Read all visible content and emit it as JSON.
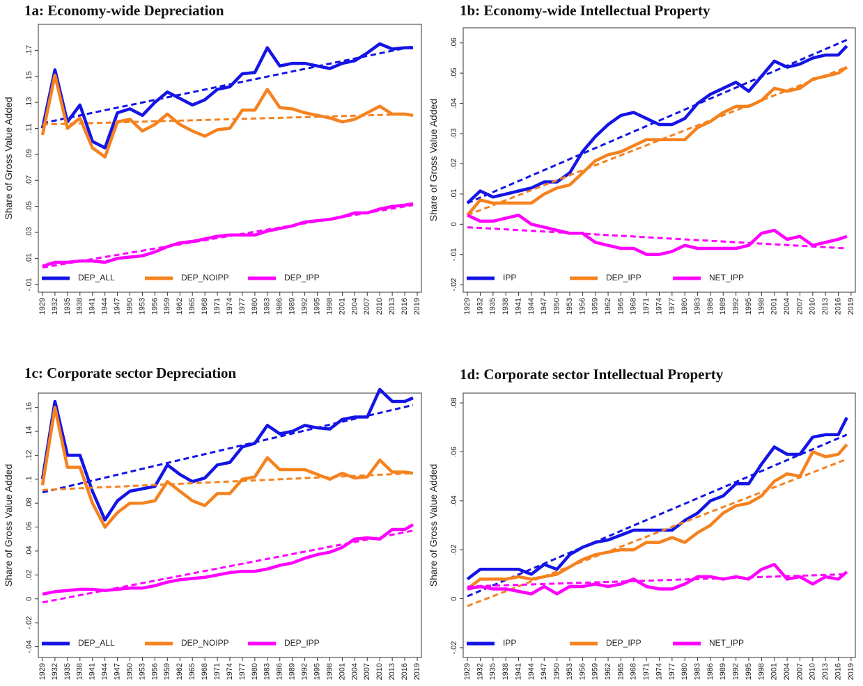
{
  "chart_data": [
    {
      "type": "line",
      "title": "1a: Economy-wide Depreciation",
      "ylabel": "Share of Gross Value Added",
      "x": [
        1929,
        1932,
        1935,
        1938,
        1941,
        1944,
        1947,
        1950,
        1953,
        1956,
        1959,
        1962,
        1965,
        1968,
        1971,
        1974,
        1977,
        1980,
        1983,
        1986,
        1989,
        1992,
        1995,
        1998,
        2001,
        2004,
        2007,
        2010,
        2013,
        2016,
        2018
      ],
      "xlim": [
        1928,
        2020
      ],
      "xticks": [
        1929,
        1932,
        1935,
        1938,
        1941,
        1944,
        1947,
        1950,
        1953,
        1956,
        1959,
        1962,
        1965,
        1968,
        1971,
        1974,
        1977,
        1980,
        1983,
        1986,
        1989,
        1992,
        1995,
        1998,
        2001,
        2004,
        2007,
        2010,
        2013,
        2016,
        2019
      ],
      "ylim": [
        -0.016,
        0.19
      ],
      "yticks": [
        {
          "value": -0.01,
          "label": "-.01"
        },
        {
          "value": 0.01,
          "label": ".01"
        },
        {
          "value": 0.03,
          "label": ".03"
        },
        {
          "value": 0.05,
          "label": ".05"
        },
        {
          "value": 0.07,
          "label": ".07"
        },
        {
          "value": 0.09,
          "label": ".09"
        },
        {
          "value": 0.11,
          "label": ".11"
        },
        {
          "value": 0.13,
          "label": ".13"
        },
        {
          "value": 0.15,
          "label": ".15"
        },
        {
          "value": 0.17,
          "label": ".17"
        }
      ],
      "series": [
        {
          "name": "DEP_ALL",
          "color": "#1414e6",
          "trend": [
            0.114,
            0.173
          ],
          "values": [
            0.11,
            0.155,
            0.115,
            0.128,
            0.1,
            0.095,
            0.122,
            0.125,
            0.12,
            0.13,
            0.138,
            0.133,
            0.128,
            0.132,
            0.14,
            0.142,
            0.152,
            0.153,
            0.172,
            0.158,
            0.16,
            0.16,
            0.158,
            0.156,
            0.16,
            0.162,
            0.168,
            0.175,
            0.171,
            0.172,
            0.172
          ]
        },
        {
          "name": "DEP_NOIPP",
          "color": "#f5821f",
          "trend": [
            0.113,
            0.121
          ],
          "values": [
            0.105,
            0.151,
            0.11,
            0.118,
            0.095,
            0.088,
            0.115,
            0.117,
            0.108,
            0.113,
            0.121,
            0.113,
            0.108,
            0.104,
            0.109,
            0.11,
            0.124,
            0.124,
            0.14,
            0.126,
            0.125,
            0.122,
            0.12,
            0.118,
            0.115,
            0.117,
            0.122,
            0.127,
            0.121,
            0.121,
            0.12
          ]
        },
        {
          "name": "DEP_IPP",
          "color": "#ff00ff",
          "trend": [
            0.003,
            0.051
          ],
          "values": [
            0.004,
            0.007,
            0.007,
            0.008,
            0.008,
            0.007,
            0.01,
            0.011,
            0.012,
            0.015,
            0.019,
            0.022,
            0.023,
            0.025,
            0.027,
            0.028,
            0.028,
            0.028,
            0.031,
            0.033,
            0.035,
            0.038,
            0.039,
            0.04,
            0.042,
            0.045,
            0.045,
            0.048,
            0.05,
            0.051,
            0.052
          ]
        }
      ]
    },
    {
      "type": "line",
      "title": "1b: Economy-wide Intellectual Property",
      "ylabel": "Share of Gross Value Added",
      "x": [
        1929,
        1932,
        1935,
        1938,
        1941,
        1944,
        1947,
        1950,
        1953,
        1956,
        1959,
        1962,
        1965,
        1968,
        1971,
        1974,
        1977,
        1980,
        1983,
        1986,
        1989,
        1992,
        1995,
        1998,
        2001,
        2004,
        2007,
        2010,
        2013,
        2016,
        2018
      ],
      "xlim": [
        1928,
        2020
      ],
      "xticks": [
        1929,
        1932,
        1935,
        1938,
        1941,
        1944,
        1947,
        1950,
        1953,
        1956,
        1959,
        1962,
        1965,
        1968,
        1971,
        1974,
        1977,
        1980,
        1983,
        1986,
        1989,
        1992,
        1995,
        1998,
        2001,
        2004,
        2007,
        2010,
        2013,
        2016,
        2019
      ],
      "ylim": [
        -0.0225,
        0.065
      ],
      "yticks": [
        {
          "value": -0.02,
          "label": "-.02"
        },
        {
          "value": -0.01,
          "label": "-.01"
        },
        0,
        {
          "value": 0.01,
          "label": ".01"
        },
        {
          "value": 0.02,
          "label": ".02"
        },
        {
          "value": 0.03,
          "label": ".03"
        },
        {
          "value": 0.04,
          "label": ".04"
        },
        {
          "value": 0.05,
          "label": ".05"
        },
        {
          "value": 0.06,
          "label": ".06"
        }
      ],
      "series": [
        {
          "name": "IPP",
          "color": "#1414e6",
          "trend": [
            0.007,
            0.061
          ],
          "values": [
            0.007,
            0.011,
            0.009,
            0.01,
            0.011,
            0.012,
            0.014,
            0.014,
            0.017,
            0.024,
            0.029,
            0.033,
            0.036,
            0.037,
            0.035,
            0.033,
            0.033,
            0.035,
            0.04,
            0.043,
            0.045,
            0.047,
            0.044,
            0.049,
            0.054,
            0.052,
            0.053,
            0.055,
            0.056,
            0.056,
            0.059
          ]
        },
        {
          "name": "DEP_IPP",
          "color": "#f5821f",
          "trend": [
            0.003,
            0.052
          ],
          "values": [
            0.003,
            0.008,
            0.007,
            0.007,
            0.007,
            0.007,
            0.01,
            0.012,
            0.013,
            0.017,
            0.021,
            0.023,
            0.024,
            0.026,
            0.028,
            0.028,
            0.028,
            0.028,
            0.032,
            0.034,
            0.037,
            0.039,
            0.039,
            0.041,
            0.045,
            0.044,
            0.045,
            0.048,
            0.049,
            0.05,
            0.052
          ]
        },
        {
          "name": "NET_IPP",
          "color": "#ff00ff",
          "trend": [
            -0.001,
            -0.008
          ],
          "values": [
            0.003,
            0.001,
            0.001,
            0.002,
            0.003,
            0.0,
            -0.001,
            -0.002,
            -0.003,
            -0.003,
            -0.006,
            -0.007,
            -0.008,
            -0.008,
            -0.01,
            -0.01,
            -0.009,
            -0.007,
            -0.008,
            -0.008,
            -0.008,
            -0.008,
            -0.007,
            -0.003,
            -0.002,
            -0.005,
            -0.004,
            -0.007,
            -0.006,
            -0.005,
            -0.004
          ]
        }
      ]
    },
    {
      "type": "line",
      "title": "1c: Corporate sector Depreciation",
      "ylabel": "Share of Gross Value Added",
      "x": [
        1929,
        1932,
        1935,
        1938,
        1941,
        1944,
        1947,
        1950,
        1953,
        1956,
        1959,
        1962,
        1965,
        1968,
        1971,
        1974,
        1977,
        1980,
        1983,
        1986,
        1989,
        1992,
        1995,
        1998,
        2001,
        2004,
        2007,
        2010,
        2013,
        2016,
        2018
      ],
      "xlim": [
        1928,
        2020
      ],
      "xticks": [
        1929,
        1932,
        1935,
        1938,
        1941,
        1944,
        1947,
        1950,
        1953,
        1956,
        1959,
        1962,
        1965,
        1968,
        1971,
        1974,
        1977,
        1980,
        1983,
        1986,
        1989,
        1992,
        1995,
        1998,
        2001,
        2004,
        2007,
        2010,
        2013,
        2016,
        2019
      ],
      "ylim": [
        -0.049,
        0.172
      ],
      "yticks": [
        {
          "value": -0.04,
          "label": "-.04"
        },
        {
          "value": -0.02,
          "label": "-.02"
        },
        0,
        {
          "value": 0.02,
          "label": ".02"
        },
        {
          "value": 0.04,
          "label": ".04"
        },
        {
          "value": 0.06,
          "label": ".06"
        },
        {
          "value": 0.08,
          "label": ".08"
        },
        {
          "value": 0.1,
          "label": ".1"
        },
        {
          "value": 0.12,
          "label": ".12"
        },
        {
          "value": 0.14,
          "label": ".14"
        },
        {
          "value": 0.16,
          "label": ".16"
        }
      ],
      "series": [
        {
          "name": "DEP_ALL",
          "color": "#1414e6",
          "trend": [
            0.089,
            0.162
          ],
          "values": [
            0.1,
            0.165,
            0.12,
            0.12,
            0.09,
            0.066,
            0.082,
            0.09,
            0.092,
            0.094,
            0.112,
            0.104,
            0.098,
            0.101,
            0.112,
            0.114,
            0.127,
            0.13,
            0.145,
            0.138,
            0.14,
            0.145,
            0.143,
            0.142,
            0.15,
            0.152,
            0.152,
            0.175,
            0.165,
            0.165,
            0.168
          ]
        },
        {
          "name": "DEP_NOIPP",
          "color": "#f5821f",
          "trend": [
            0.091,
            0.105
          ],
          "values": [
            0.095,
            0.16,
            0.11,
            0.11,
            0.08,
            0.06,
            0.072,
            0.08,
            0.08,
            0.082,
            0.098,
            0.09,
            0.082,
            0.078,
            0.088,
            0.088,
            0.1,
            0.102,
            0.118,
            0.108,
            0.108,
            0.108,
            0.104,
            0.1,
            0.105,
            0.101,
            0.102,
            0.116,
            0.106,
            0.106,
            0.105
          ]
        },
        {
          "name": "DEP_IPP",
          "color": "#ff00ff",
          "trend": [
            -0.003,
            0.057
          ],
          "values": [
            0.004,
            0.006,
            0.007,
            0.008,
            0.008,
            0.007,
            0.008,
            0.009,
            0.009,
            0.011,
            0.014,
            0.016,
            0.017,
            0.018,
            0.02,
            0.022,
            0.023,
            0.023,
            0.025,
            0.028,
            0.03,
            0.034,
            0.037,
            0.039,
            0.043,
            0.05,
            0.051,
            0.05,
            0.058,
            0.058,
            0.062
          ]
        }
      ]
    },
    {
      "type": "line",
      "title": "1d: Corporate sector Intellectual Property",
      "ylabel": "Share of Gross Value Added",
      "x": [
        1929,
        1932,
        1935,
        1938,
        1941,
        1944,
        1947,
        1950,
        1953,
        1956,
        1959,
        1962,
        1965,
        1968,
        1971,
        1974,
        1977,
        1980,
        1983,
        1986,
        1989,
        1992,
        1995,
        1998,
        2001,
        2004,
        2007,
        2010,
        2013,
        2016,
        2018
      ],
      "xlim": [
        1928,
        2020
      ],
      "xticks": [
        1929,
        1932,
        1935,
        1938,
        1941,
        1944,
        1947,
        1950,
        1953,
        1956,
        1959,
        1962,
        1965,
        1968,
        1971,
        1974,
        1977,
        1980,
        1983,
        1986,
        1989,
        1992,
        1995,
        1998,
        2001,
        2004,
        2007,
        2010,
        2013,
        2016,
        2019
      ],
      "ylim": [
        -0.024,
        0.084
      ],
      "yticks": [
        {
          "value": -0.02,
          "label": "-.02"
        },
        0,
        {
          "value": 0.02,
          "label": ".02"
        },
        {
          "value": 0.04,
          "label": ".04"
        },
        {
          "value": 0.06,
          "label": ".06"
        },
        {
          "value": 0.08,
          "label": ".08"
        }
      ],
      "series": [
        {
          "name": "IPP",
          "color": "#1414e6",
          "trend": [
            0.001,
            0.067
          ],
          "values": [
            0.008,
            0.012,
            0.012,
            0.012,
            0.012,
            0.01,
            0.014,
            0.012,
            0.018,
            0.021,
            0.023,
            0.024,
            0.026,
            0.028,
            0.028,
            0.028,
            0.028,
            0.032,
            0.035,
            0.04,
            0.042,
            0.047,
            0.047,
            0.055,
            0.062,
            0.059,
            0.059,
            0.066,
            0.067,
            0.067,
            0.074
          ]
        },
        {
          "name": "DEP_IPP",
          "color": "#f5821f",
          "trend": [
            -0.003,
            0.057
          ],
          "values": [
            0.004,
            0.008,
            0.008,
            0.008,
            0.009,
            0.008,
            0.009,
            0.01,
            0.013,
            0.016,
            0.018,
            0.019,
            0.02,
            0.02,
            0.023,
            0.023,
            0.025,
            0.023,
            0.027,
            0.03,
            0.035,
            0.038,
            0.039,
            0.042,
            0.048,
            0.051,
            0.05,
            0.06,
            0.058,
            0.059,
            0.063
          ]
        },
        {
          "name": "NET_IPP",
          "color": "#ff00ff",
          "trend": [
            0.005,
            0.01
          ],
          "values": [
            0.004,
            0.005,
            0.004,
            0.004,
            0.003,
            0.002,
            0.005,
            0.002,
            0.005,
            0.005,
            0.006,
            0.005,
            0.006,
            0.008,
            0.005,
            0.004,
            0.004,
            0.006,
            0.009,
            0.009,
            0.008,
            0.009,
            0.008,
            0.012,
            0.014,
            0.008,
            0.009,
            0.006,
            0.009,
            0.008,
            0.011
          ]
        }
      ]
    }
  ]
}
